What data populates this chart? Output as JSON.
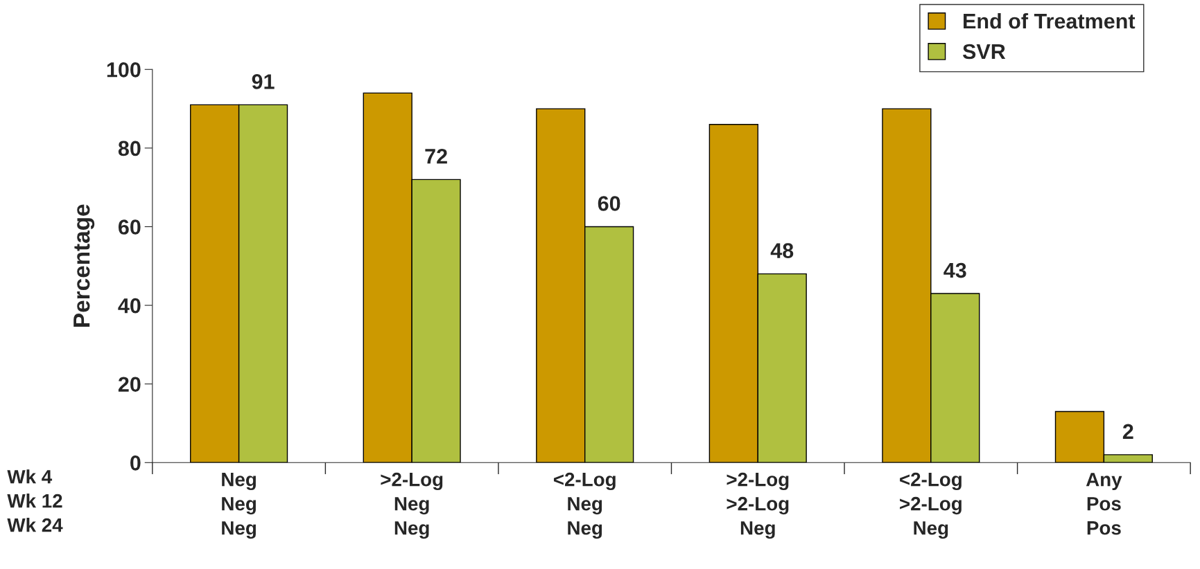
{
  "chart_data": {
    "type": "bar",
    "ylabel": "Percentage",
    "categories": [
      "Neg\nNeg\nNeg",
      ">2-Log\nNeg\nNeg",
      "<2-Log\nNeg\nNeg",
      ">2-Log\n>2-Log\nNeg",
      "<2-Log\n>2-Log\nNeg",
      "Any\nPos\nPos"
    ],
    "series": [
      {
        "name": "End of Treatment",
        "color": "#cc9900",
        "values": [
          91,
          94,
          90,
          86,
          90,
          13
        ]
      },
      {
        "name": "SVR",
        "color": "#b0c040",
        "values": [
          91,
          72,
          60,
          48,
          43,
          2
        ],
        "value_labels": [
          "91",
          "72",
          "60",
          "48",
          "43",
          "2"
        ]
      }
    ],
    "ylim": [
      0,
      100
    ],
    "yticks": [
      0,
      20,
      40,
      60,
      80,
      100
    ],
    "grid": false,
    "legend": "top right",
    "annotations": [
      "Wk 4\nWk 12\nWk 24"
    ]
  }
}
